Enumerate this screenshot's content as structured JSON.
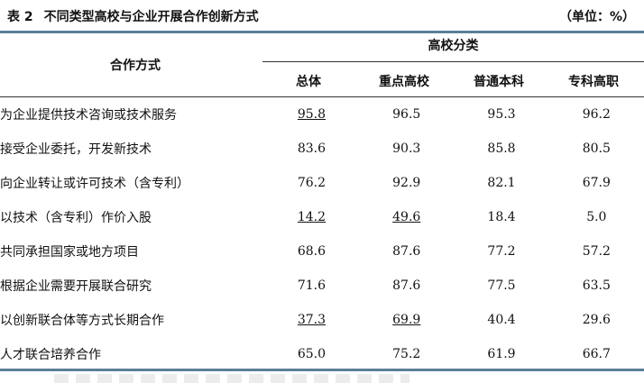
{
  "table": {
    "number": "表 2",
    "title": "不同类型高校与企业开展合作创新方式",
    "unit": "（单位：%）",
    "method_header": "合作方式",
    "group_header": "高校分类",
    "columns": [
      "总体",
      "重点高校",
      "普通本科",
      "专科高职"
    ],
    "rows": [
      {
        "method": "为企业提供技术咨询或技术服务",
        "values": [
          "95.8",
          "96.5",
          "95.3",
          "96.2"
        ],
        "underlined": [
          true,
          false,
          false,
          false
        ]
      },
      {
        "method": "接受企业委托，开发新技术",
        "values": [
          "83.6",
          "90.3",
          "85.8",
          "80.5"
        ],
        "underlined": [
          false,
          false,
          false,
          false
        ]
      },
      {
        "method": "向企业转让或许可技术（含专利）",
        "values": [
          "76.2",
          "92.9",
          "82.1",
          "67.9"
        ],
        "underlined": [
          false,
          false,
          false,
          false
        ]
      },
      {
        "method": "以技术（含专利）作价入股",
        "values": [
          "14.2",
          "49.6",
          "18.4",
          "5.0"
        ],
        "underlined": [
          true,
          true,
          false,
          false
        ]
      },
      {
        "method": "共同承担国家或地方项目",
        "values": [
          "68.6",
          "87.6",
          "77.2",
          "57.2"
        ],
        "underlined": [
          false,
          false,
          false,
          false
        ]
      },
      {
        "method": "根据企业需要开展联合研究",
        "values": [
          "71.6",
          "87.6",
          "77.5",
          "63.5"
        ],
        "underlined": [
          false,
          false,
          false,
          false
        ]
      },
      {
        "method": "以创新联合体等方式长期合作",
        "values": [
          "37.3",
          "69.9",
          "40.4",
          "29.6"
        ],
        "underlined": [
          true,
          true,
          false,
          false
        ]
      },
      {
        "method": "人才联合培养合作",
        "values": [
          "65.0",
          "75.2",
          "61.9",
          "66.7"
        ],
        "underlined": [
          false,
          false,
          false,
          false
        ]
      }
    ]
  },
  "colors": {
    "rule": "#5b7f99",
    "text": "#111111"
  }
}
